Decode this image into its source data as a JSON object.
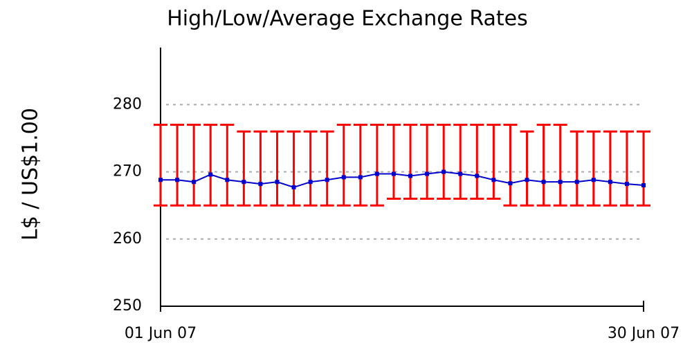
{
  "chart_data": {
    "type": "errorbar",
    "title": "High/Low/Average Exchange Rates",
    "ylabel": "L$ / US$1.00",
    "categories": [
      "01 Jun 07",
      null,
      null,
      null,
      null,
      null,
      null,
      null,
      null,
      null,
      null,
      null,
      null,
      null,
      null,
      null,
      null,
      null,
      null,
      null,
      null,
      null,
      null,
      null,
      null,
      null,
      null,
      null,
      null,
      "30 Jun 07"
    ],
    "series": [
      {
        "color": "#ff0000",
        "values": [
          277,
          277,
          277,
          277,
          277,
          276,
          276,
          276,
          276,
          276,
          276,
          277,
          277,
          277,
          277,
          277,
          277,
          277,
          277,
          277,
          277,
          277,
          276,
          277,
          277,
          276,
          276,
          276,
          276,
          276
        ]
      },
      {
        "color": "#ff0000",
        "values": [
          265,
          265,
          265,
          265,
          265,
          265,
          265,
          265,
          265,
          265,
          265,
          265,
          265,
          265,
          266,
          266,
          266,
          266,
          266,
          266,
          266,
          265,
          265,
          265,
          265,
          265,
          265,
          265,
          265,
          265
        ]
      },
      {
        "color": "#0000cc",
        "values": [
          268.8,
          268.8,
          268.5,
          269.6,
          268.8,
          268.5,
          268.2,
          268.5,
          267.7,
          268.5,
          268.8,
          269.2,
          269.2,
          269.7,
          269.7,
          269.4,
          269.7,
          270.0,
          269.7,
          269.4,
          268.8,
          268.3,
          268.8,
          268.5,
          268.5,
          268.5,
          268.8,
          268.5,
          268.2,
          268.0
        ]
      }
    ],
    "ylim": [
      250,
      289
    ],
    "yticks": [
      250,
      260,
      270,
      280
    ],
    "grid": true
  }
}
